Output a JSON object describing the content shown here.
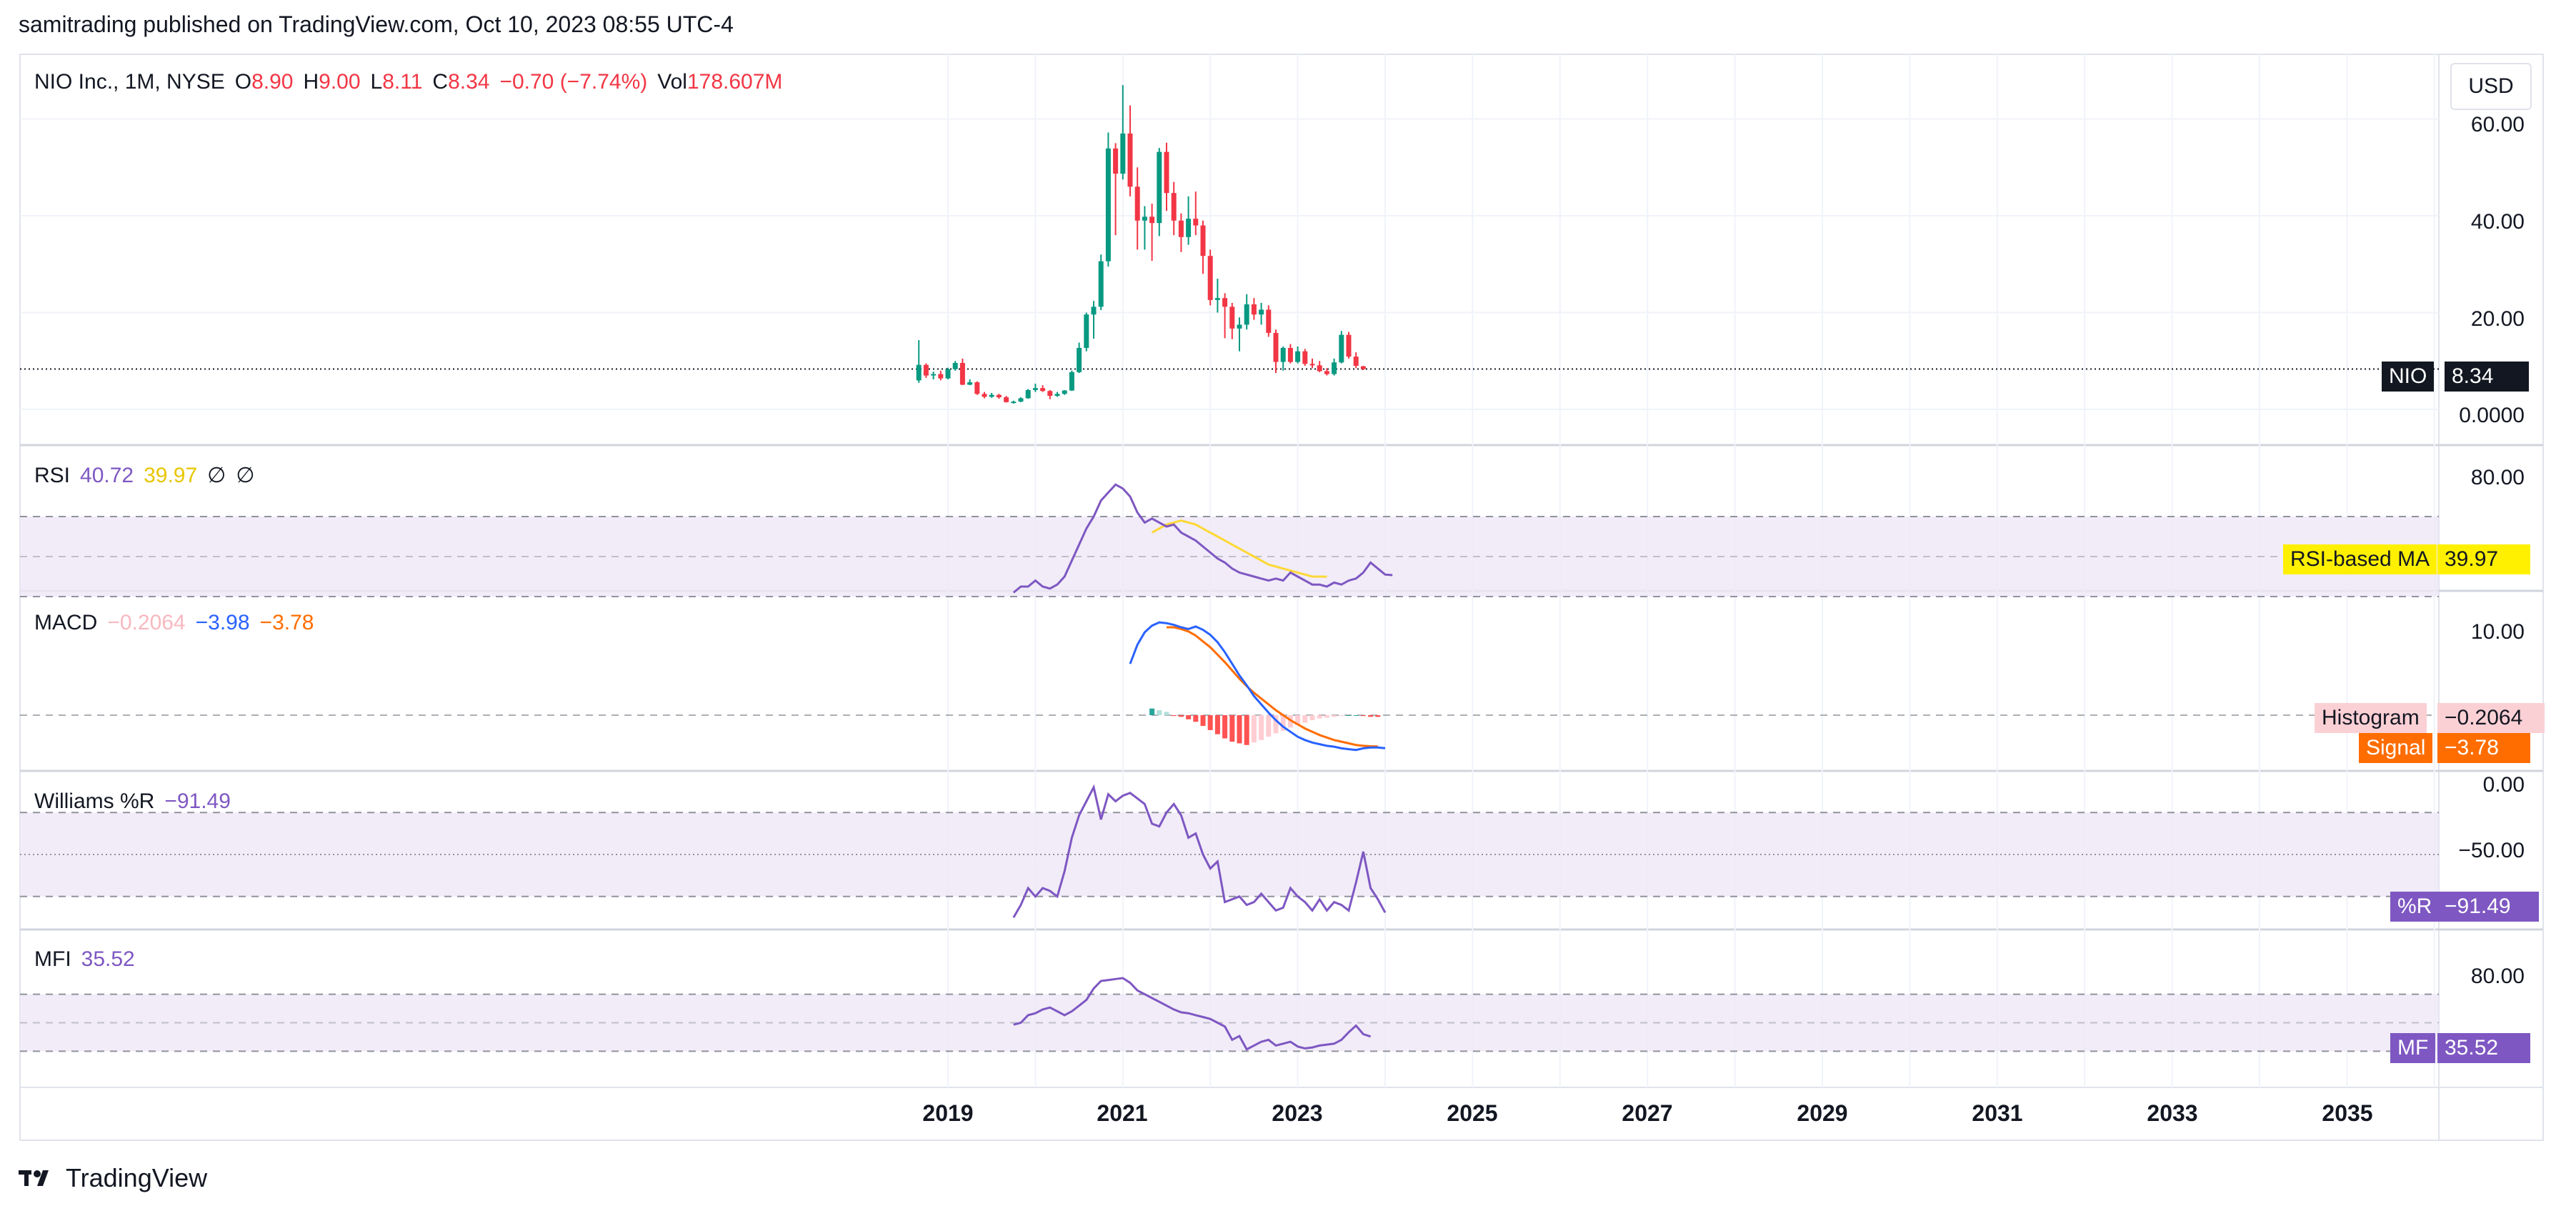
{
  "header": {
    "publisher_line": "samitrading published on TradingView.com, Oct 10, 2023 08:55 UTC-4"
  },
  "currency": "USD",
  "brand": {
    "name": "TradingView",
    "icon": "tradingview-logo-icon"
  },
  "colors": {
    "up": "#089981",
    "down": "#f23645",
    "rsi": "#7e57c2",
    "rsi_ma": "#fdd835",
    "macd": "#2962ff",
    "signal": "#ff6d00",
    "hist_up": "#26a69a",
    "hist_down": "#ff5252",
    "band": "#ede7f6"
  },
  "main": {
    "symbol_line": "NIO Inc., 1M, NYSE",
    "ohlc": {
      "o_label": "O",
      "o": "8.90",
      "h_label": "H",
      "h": "9.00",
      "l_label": "L",
      "l": "8.11",
      "c_label": "C",
      "c": "8.34",
      "chg": "−0.70 (−7.74%)",
      "vol_label": "Vol",
      "vol": "178.607M"
    },
    "price_tag": {
      "symbol": "NIO",
      "value": "8.34"
    },
    "axis_ticks": [
      "60.00",
      "40.00",
      "20.00",
      "0.0000"
    ]
  },
  "rsi": {
    "label": "RSI",
    "value": "40.72",
    "ma": "39.97",
    "na1": "∅",
    "na2": "∅",
    "tag_label": "RSI-based MA",
    "tag_value": "39.97",
    "axis_ticks": [
      "80.00"
    ]
  },
  "macd": {
    "label": "MACD",
    "hist": "−0.2064",
    "macd": "−3.98",
    "signal": "−3.78",
    "hist_tag_label": "Histogram",
    "hist_tag_value": "−0.2064",
    "sig_tag_label": "Signal",
    "sig_tag_value": "−3.78",
    "axis_ticks": [
      "10.00"
    ]
  },
  "williams": {
    "label": "Williams %R",
    "value": "−91.49",
    "tag_label": "%R",
    "tag_value": "−91.49",
    "axis_ticks": [
      "0.00",
      "−50.00"
    ]
  },
  "mfi": {
    "label": "MFI",
    "value": "35.52",
    "tag_label": "MF",
    "tag_value": "35.52",
    "axis_ticks": [
      "80.00"
    ]
  },
  "x_axis": {
    "ticks": [
      "2019",
      "2021",
      "2023",
      "2025",
      "2027",
      "2029",
      "2031",
      "2033",
      "2035"
    ]
  },
  "chart_data": {
    "type": "candlestick",
    "interval": "1M",
    "x_range": [
      "2018-09",
      "2036-06"
    ],
    "y_range": [
      0,
      65
    ],
    "candles": [
      {
        "d": "2018-09",
        "o": 6.0,
        "h": 14.3,
        "l": 5.5,
        "c": 9.2
      },
      {
        "d": "2018-10",
        "o": 9.2,
        "h": 9.5,
        "l": 6.5,
        "c": 7.0
      },
      {
        "d": "2018-11",
        "o": 7.0,
        "h": 7.8,
        "l": 6.2,
        "c": 7.3
      },
      {
        "d": "2018-12",
        "o": 7.3,
        "h": 8.0,
        "l": 6.0,
        "c": 6.4
      },
      {
        "d": "2019-01",
        "o": 6.4,
        "h": 8.6,
        "l": 6.2,
        "c": 8.3
      },
      {
        "d": "2019-02",
        "o": 8.3,
        "h": 10.0,
        "l": 8.0,
        "c": 9.6
      },
      {
        "d": "2019-03",
        "o": 9.6,
        "h": 10.5,
        "l": 5.0,
        "c": 5.1
      },
      {
        "d": "2019-04",
        "o": 5.1,
        "h": 6.2,
        "l": 5.0,
        "c": 5.6
      },
      {
        "d": "2019-05",
        "o": 5.6,
        "h": 5.8,
        "l": 3.0,
        "c": 3.2
      },
      {
        "d": "2019-06",
        "o": 3.2,
        "h": 3.6,
        "l": 2.3,
        "c": 2.6
      },
      {
        "d": "2019-07",
        "o": 2.6,
        "h": 3.4,
        "l": 2.4,
        "c": 3.0
      },
      {
        "d": "2019-08",
        "o": 3.0,
        "h": 3.2,
        "l": 2.2,
        "c": 2.5
      },
      {
        "d": "2019-09",
        "o": 2.5,
        "h": 2.8,
        "l": 1.4,
        "c": 1.5
      },
      {
        "d": "2019-10",
        "o": 1.5,
        "h": 1.8,
        "l": 1.2,
        "c": 1.6
      },
      {
        "d": "2019-11",
        "o": 1.6,
        "h": 2.5,
        "l": 1.5,
        "c": 2.3
      },
      {
        "d": "2019-12",
        "o": 2.3,
        "h": 4.2,
        "l": 2.2,
        "c": 4.0
      },
      {
        "d": "2020-01",
        "o": 4.0,
        "h": 5.3,
        "l": 3.6,
        "c": 4.4
      },
      {
        "d": "2020-02",
        "o": 4.4,
        "h": 5.0,
        "l": 3.6,
        "c": 3.8
      },
      {
        "d": "2020-03",
        "o": 3.8,
        "h": 4.0,
        "l": 2.1,
        "c": 2.8
      },
      {
        "d": "2020-04",
        "o": 2.8,
        "h": 3.6,
        "l": 2.6,
        "c": 3.2
      },
      {
        "d": "2020-05",
        "o": 3.2,
        "h": 4.0,
        "l": 3.0,
        "c": 3.9
      },
      {
        "d": "2020-06",
        "o": 3.9,
        "h": 8.0,
        "l": 3.8,
        "c": 7.7
      },
      {
        "d": "2020-07",
        "o": 7.7,
        "h": 13.8,
        "l": 7.5,
        "c": 12.7
      },
      {
        "d": "2020-08",
        "o": 12.7,
        "h": 20.0,
        "l": 12.0,
        "c": 19.6
      },
      {
        "d": "2020-09",
        "o": 19.6,
        "h": 22.4,
        "l": 14.6,
        "c": 21.2
      },
      {
        "d": "2020-10",
        "o": 21.2,
        "h": 32.0,
        "l": 20.5,
        "c": 30.6
      },
      {
        "d": "2020-11",
        "o": 30.6,
        "h": 57.2,
        "l": 29.5,
        "c": 53.9
      },
      {
        "d": "2020-12",
        "o": 53.9,
        "h": 55.0,
        "l": 36.0,
        "c": 48.7
      },
      {
        "d": "2021-01",
        "o": 48.7,
        "h": 66.99,
        "l": 47.5,
        "c": 57.0
      },
      {
        "d": "2021-02",
        "o": 57.0,
        "h": 62.8,
        "l": 44.0,
        "c": 46.0
      },
      {
        "d": "2021-03",
        "o": 46.0,
        "h": 50.0,
        "l": 33.0,
        "c": 39.0
      },
      {
        "d": "2021-04",
        "o": 39.0,
        "h": 42.0,
        "l": 33.0,
        "c": 39.8
      },
      {
        "d": "2021-05",
        "o": 39.8,
        "h": 42.5,
        "l": 30.7,
        "c": 38.5
      },
      {
        "d": "2021-06",
        "o": 38.5,
        "h": 54.0,
        "l": 35.8,
        "c": 53.2
      },
      {
        "d": "2021-07",
        "o": 53.2,
        "h": 55.1,
        "l": 41.0,
        "c": 44.7
      },
      {
        "d": "2021-08",
        "o": 44.7,
        "h": 47.0,
        "l": 36.0,
        "c": 39.0
      },
      {
        "d": "2021-09",
        "o": 39.0,
        "h": 40.5,
        "l": 32.5,
        "c": 35.6
      },
      {
        "d": "2021-10",
        "o": 35.6,
        "h": 44.0,
        "l": 34.0,
        "c": 39.4
      },
      {
        "d": "2021-11",
        "o": 39.4,
        "h": 45.0,
        "l": 36.0,
        "c": 38.0
      },
      {
        "d": "2021-12",
        "o": 38.0,
        "h": 39.0,
        "l": 28.0,
        "c": 31.7
      },
      {
        "d": "2022-01",
        "o": 31.7,
        "h": 33.0,
        "l": 21.5,
        "c": 22.6
      },
      {
        "d": "2022-02",
        "o": 22.6,
        "h": 27.0,
        "l": 20.0,
        "c": 23.0
      },
      {
        "d": "2022-03",
        "o": 23.0,
        "h": 24.0,
        "l": 14.7,
        "c": 21.2
      },
      {
        "d": "2022-04",
        "o": 21.2,
        "h": 22.0,
        "l": 14.5,
        "c": 16.7
      },
      {
        "d": "2022-05",
        "o": 16.7,
        "h": 19.0,
        "l": 12.0,
        "c": 17.5
      },
      {
        "d": "2022-06",
        "o": 17.5,
        "h": 23.8,
        "l": 16.5,
        "c": 21.7
      },
      {
        "d": "2022-07",
        "o": 21.7,
        "h": 23.0,
        "l": 18.5,
        "c": 19.6
      },
      {
        "d": "2022-08",
        "o": 19.6,
        "h": 22.0,
        "l": 17.5,
        "c": 20.6
      },
      {
        "d": "2022-09",
        "o": 20.6,
        "h": 21.5,
        "l": 15.0,
        "c": 15.8
      },
      {
        "d": "2022-10",
        "o": 15.8,
        "h": 16.5,
        "l": 7.5,
        "c": 9.8
      },
      {
        "d": "2022-11",
        "o": 9.8,
        "h": 13.0,
        "l": 8.0,
        "c": 12.7
      },
      {
        "d": "2022-12",
        "o": 12.7,
        "h": 13.5,
        "l": 9.5,
        "c": 9.8
      },
      {
        "d": "2023-01",
        "o": 9.8,
        "h": 13.0,
        "l": 9.5,
        "c": 12.0
      },
      {
        "d": "2023-02",
        "o": 12.0,
        "h": 12.5,
        "l": 9.0,
        "c": 9.4
      },
      {
        "d": "2023-03",
        "o": 9.4,
        "h": 10.5,
        "l": 8.5,
        "c": 9.1
      },
      {
        "d": "2023-04",
        "o": 9.1,
        "h": 10.0,
        "l": 7.7,
        "c": 7.9
      },
      {
        "d": "2023-05",
        "o": 7.9,
        "h": 8.5,
        "l": 7.0,
        "c": 7.3
      },
      {
        "d": "2023-06",
        "o": 7.3,
        "h": 10.5,
        "l": 7.0,
        "c": 9.7
      },
      {
        "d": "2023-07",
        "o": 9.7,
        "h": 16.2,
        "l": 9.5,
        "c": 15.4
      },
      {
        "d": "2023-08",
        "o": 15.4,
        "h": 16.0,
        "l": 10.5,
        "c": 10.9
      },
      {
        "d": "2023-09",
        "o": 10.9,
        "h": 11.8,
        "l": 8.5,
        "c": 9.0
      },
      {
        "d": "2023-10",
        "o": 8.9,
        "h": 9.0,
        "l": 8.11,
        "c": 8.34
      }
    ],
    "rsi": {
      "range": [
        20,
        100
      ],
      "bands": [
        30,
        50,
        70
      ],
      "start": "2019-10",
      "values": [
        32,
        35,
        35,
        38,
        35,
        34,
        36,
        40,
        48,
        56,
        64,
        70,
        78,
        82,
        86,
        84,
        80,
        72,
        67,
        69,
        67,
        65,
        66,
        62,
        60,
        58,
        55,
        52,
        49,
        47,
        44,
        42,
        41,
        40,
        39,
        38,
        39,
        38,
        42,
        40,
        38,
        36,
        36,
        35,
        37,
        36,
        38,
        39,
        42,
        47,
        44,
        41,
        40.72
      ],
      "ma_start": "2021-05",
      "ma_values": [
        62,
        64,
        66,
        67,
        68,
        67,
        66,
        64,
        62,
        60,
        58,
        56,
        54,
        52,
        50,
        48,
        46,
        45,
        44,
        43,
        42,
        41,
        40,
        40,
        39.97
      ]
    },
    "macd": {
      "range": [
        -5,
        12
      ],
      "start": "2021-02",
      "macd": [
        6.2,
        8.5,
        10.0,
        10.8,
        11.2,
        11.1,
        10.9,
        10.6,
        10.4,
        10.7,
        10.3,
        9.7,
        8.8,
        7.6,
        6.2,
        4.8,
        3.6,
        2.3,
        1.3,
        0.3,
        -0.6,
        -1.4,
        -2.0,
        -2.6,
        -3.0,
        -3.3,
        -3.5,
        -3.7,
        -3.8,
        -4.0,
        -4.1,
        -4.2,
        -4.0,
        -3.9,
        -3.9,
        -3.98
      ],
      "signal_start": "2021-07",
      "signal": [
        10.6,
        10.6,
        10.4,
        10.1,
        9.6,
        8.9,
        8.2,
        7.3,
        6.4,
        5.4,
        4.4,
        3.5,
        2.7,
        2.0,
        1.3,
        0.6,
        0.0,
        -0.6,
        -1.1,
        -1.6,
        -2.0,
        -2.4,
        -2.7,
        -3.0,
        -3.2,
        -3.4,
        -3.6,
        -3.7,
        -3.75,
        -3.78
      ],
      "hist_start": "2021-05",
      "hist": [
        0.8,
        0.6,
        0.4,
        -0.1,
        -0.2,
        -0.5,
        -0.8,
        -1.3,
        -1.8,
        -2.3,
        -2.8,
        -3.2,
        -3.4,
        -3.6,
        -3.3,
        -3.0,
        -2.6,
        -2.2,
        -1.9,
        -1.5,
        -1.2,
        -0.9,
        -0.6,
        -0.4,
        -0.3,
        -0.2,
        -0.1,
        0,
        0,
        -0.1,
        -0.2,
        -0.2064
      ]
    },
    "williams": {
      "range": [
        -100,
        0
      ],
      "bands": [
        -20,
        -50,
        -80
      ],
      "start": "2019-10",
      "values": [
        -95,
        -86,
        -74,
        -80,
        -74,
        -76,
        -80,
        -62,
        -38,
        -22,
        -12,
        -2,
        -25,
        -7,
        -12,
        -8,
        -6,
        -10,
        -14,
        -28,
        -30,
        -20,
        -14,
        -22,
        -38,
        -35,
        -50,
        -60,
        -55,
        -84,
        -82,
        -80,
        -86,
        -84,
        -78,
        -84,
        -90,
        -88,
        -74,
        -80,
        -84,
        -90,
        -82,
        -90,
        -84,
        -86,
        -90,
        -70,
        -48,
        -74,
        -82,
        -91.49
      ]
    },
    "mfi": {
      "range": [
        0,
        100
      ],
      "bands": [
        20,
        50,
        80
      ],
      "start": "2019-10",
      "values": [
        48,
        50,
        58,
        60,
        64,
        66,
        62,
        58,
        62,
        68,
        74,
        86,
        94,
        95,
        96,
        97,
        92,
        84,
        80,
        76,
        72,
        68,
        64,
        61,
        60,
        58,
        56,
        54,
        50,
        46,
        32,
        36,
        22,
        26,
        30,
        32,
        26,
        28,
        30,
        25,
        23,
        24,
        26,
        27,
        28,
        32,
        40,
        47,
        38,
        35.52
      ]
    }
  }
}
